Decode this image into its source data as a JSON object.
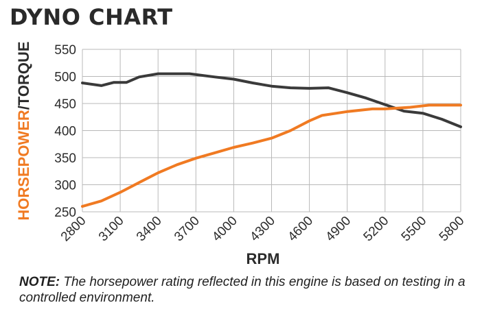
{
  "chart_data": {
    "type": "line",
    "title": "DYNO CHART",
    "xlabel": "RPM",
    "ylabel_parts": [
      {
        "text": "HORSEPOWER",
        "color": "#f07a22"
      },
      {
        "text": "/TORQUE",
        "color": "#2b2b2b"
      }
    ],
    "xlim": [
      2800,
      5800
    ],
    "ylim": [
      250,
      550
    ],
    "x_ticks": [
      "2800",
      "3100",
      "3400",
      "3700",
      "4000",
      "4300",
      "4600",
      "4900",
      "5200",
      "5500",
      "5800"
    ],
    "y_ticks": [
      "550",
      "500",
      "450",
      "400",
      "350",
      "300",
      "250"
    ],
    "grid": true,
    "series": [
      {
        "key": "horsepower",
        "color": "#f07a22",
        "x": [
          2800,
          2950,
          3100,
          3250,
          3400,
          3550,
          3700,
          3850,
          4000,
          4150,
          4300,
          4450,
          4600,
          4700,
          4900,
          5100,
          5200,
          5400,
          5550,
          5700,
          5800
        ],
        "y": [
          260,
          270,
          286,
          304,
          322,
          337,
          349,
          359,
          369,
          377,
          386,
          400,
          418,
          428,
          435,
          440,
          440,
          443,
          447,
          447,
          447
        ]
      },
      {
        "key": "torque",
        "color": "#3a3a3a",
        "x": [
          2800,
          2950,
          3050,
          3150,
          3250,
          3400,
          3550,
          3650,
          3850,
          4000,
          4150,
          4300,
          4450,
          4600,
          4750,
          4900,
          5050,
          5200,
          5350,
          5500,
          5650,
          5800
        ],
        "y": [
          488,
          483,
          489,
          489,
          499,
          505,
          505,
          505,
          499,
          495,
          488,
          482,
          479,
          478,
          479,
          470,
          460,
          448,
          436,
          432,
          421,
          407
        ]
      }
    ]
  },
  "note": {
    "label": "NOTE:",
    "text": " The horsepower rating reflected in this engine is based on testing in a controlled environment."
  }
}
